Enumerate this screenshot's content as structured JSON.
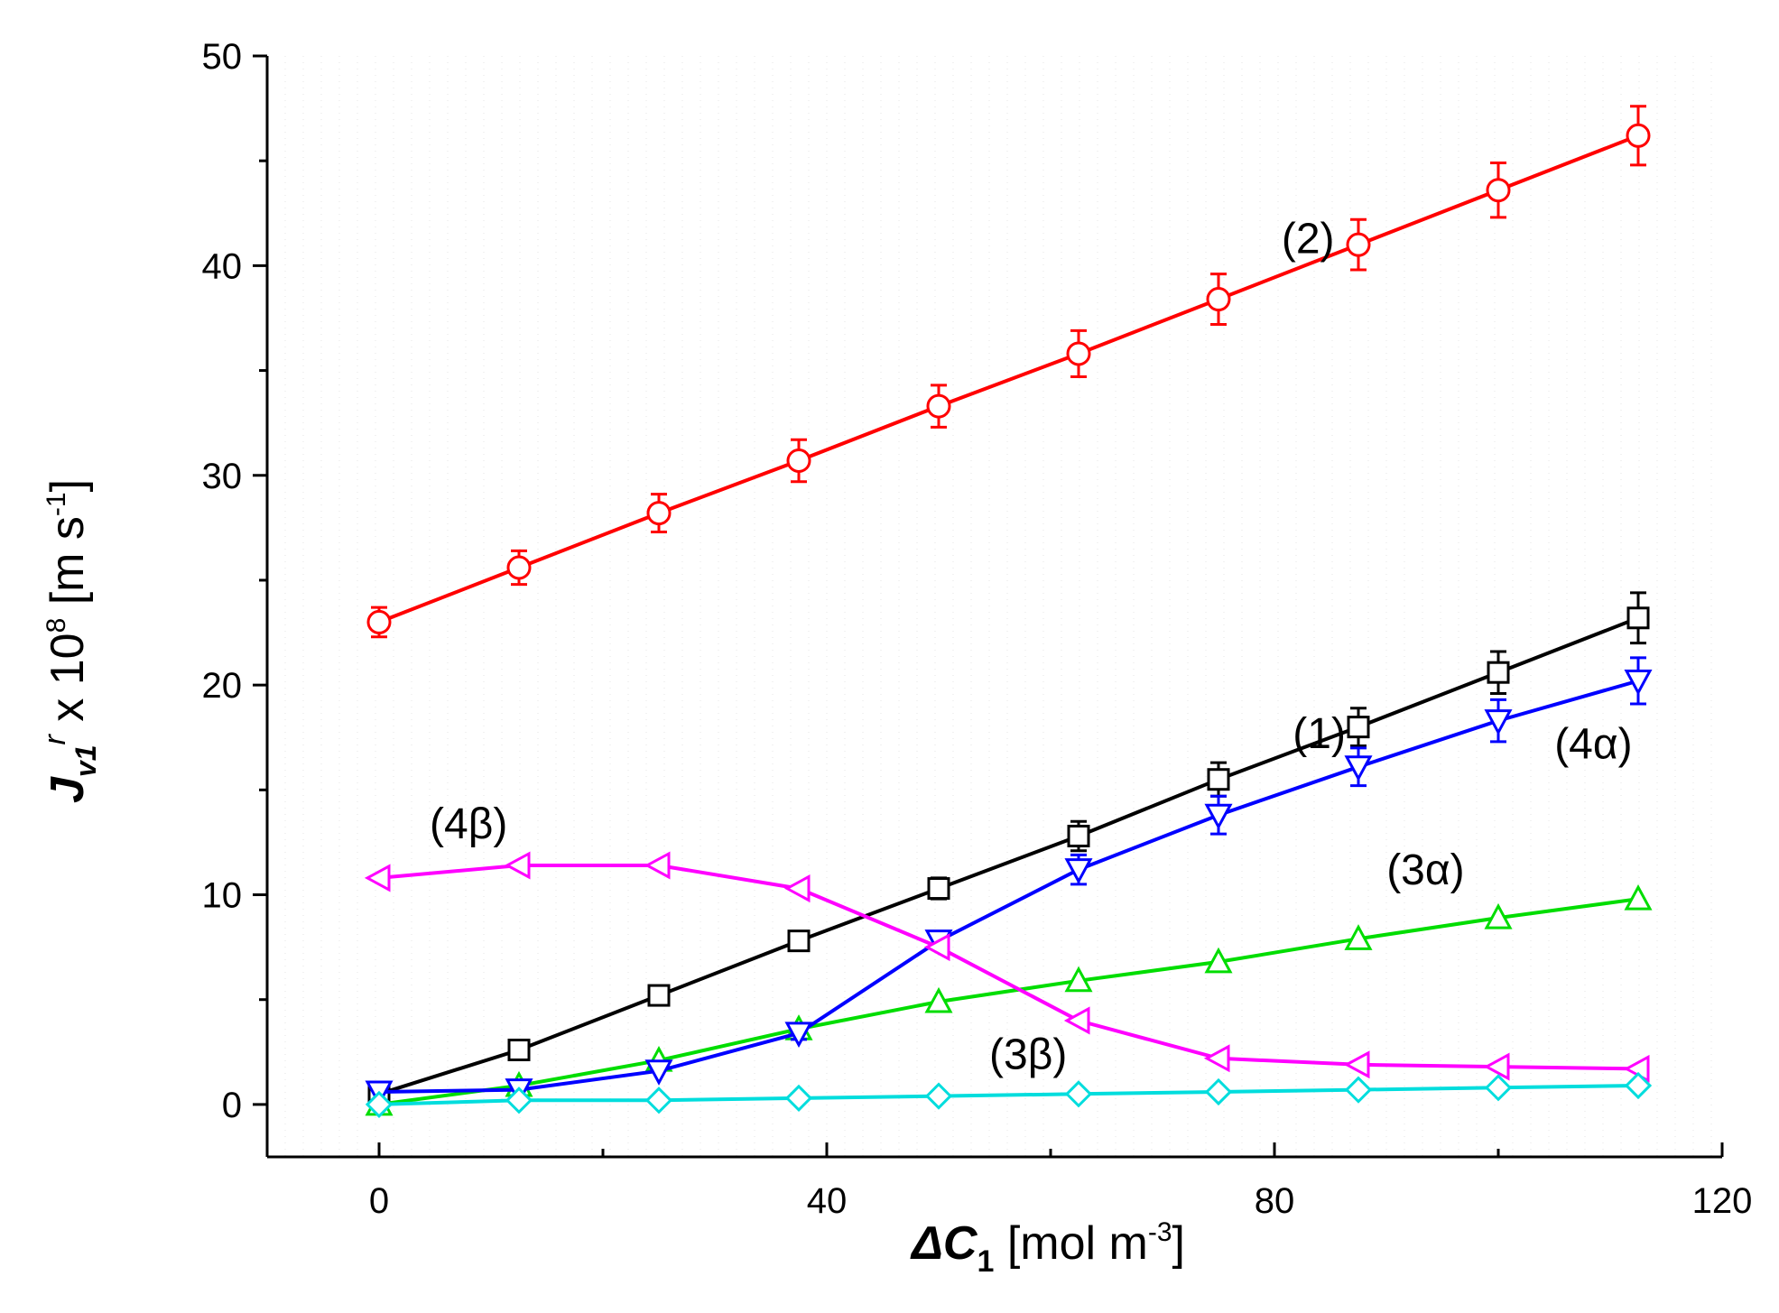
{
  "chart_data": {
    "type": "line",
    "x_axis": {
      "label_symbol": "ΔC",
      "label_subscript": "1",
      "label_unit_open": " [mol m",
      "label_unit_sup": "-3",
      "label_unit_close": "]",
      "range": [
        -10,
        120
      ],
      "ticks": [
        0,
        40,
        80,
        120
      ],
      "tick_labels": [
        "0",
        "40",
        "80",
        "120"
      ]
    },
    "y_axis": {
      "label_symbol": "J",
      "label_subscript": "v1",
      "label_superscript": "r",
      "label_mult": " x 10",
      "label_exp": "8",
      "label_unit_open": " [m s",
      "label_unit_sup": "-1",
      "label_unit_close": "]",
      "range": [
        -2.5,
        50
      ],
      "ticks": [
        0,
        10,
        20,
        30,
        40,
        50
      ],
      "tick_labels": [
        "0",
        "10",
        "20",
        "30",
        "40",
        "50"
      ]
    },
    "x": [
      0,
      12.5,
      25,
      37.5,
      50,
      62.5,
      75,
      87.5,
      100,
      112.5
    ],
    "series": [
      {
        "name": "(1)",
        "color": "#000000",
        "marker": "square",
        "values": [
          0.5,
          2.6,
          5.2,
          7.8,
          10.3,
          12.8,
          15.5,
          18.0,
          20.6,
          23.2
        ],
        "errors": [
          0,
          0.3,
          0.3,
          0.4,
          0.5,
          0.7,
          0.8,
          0.9,
          1.0,
          1.2
        ]
      },
      {
        "name": "(2)",
        "color": "#ff0000",
        "marker": "circle",
        "values": [
          23.0,
          25.6,
          28.2,
          30.7,
          33.3,
          35.8,
          38.4,
          41.0,
          43.6,
          46.2
        ],
        "errors": [
          0.7,
          0.8,
          0.9,
          1.0,
          1.0,
          1.1,
          1.2,
          1.2,
          1.3,
          1.4
        ]
      },
      {
        "name": "(3α)",
        "color": "#00dd00",
        "marker": "triangle-up",
        "values": [
          0.0,
          0.9,
          2.1,
          3.6,
          4.9,
          5.9,
          6.8,
          7.9,
          8.9,
          9.8
        ],
        "errors": [
          0,
          0,
          0,
          0,
          0,
          0,
          0,
          0,
          0,
          0
        ]
      },
      {
        "name": "(4α)",
        "color": "#0000ff",
        "marker": "triangle-down",
        "values": [
          0.6,
          0.7,
          1.6,
          3.4,
          7.8,
          11.2,
          13.8,
          16.1,
          18.3,
          20.2
        ],
        "errors": [
          0,
          0,
          0,
          0.3,
          0.4,
          0.7,
          0.9,
          0.9,
          1.0,
          1.1
        ]
      },
      {
        "name": "(4β)",
        "color": "#ff00ff",
        "marker": "triangle-left",
        "values": [
          10.8,
          11.4,
          11.4,
          10.3,
          7.5,
          4.0,
          2.2,
          1.9,
          1.8,
          1.7
        ],
        "errors": [
          0,
          0,
          0,
          0,
          0,
          0,
          0,
          0,
          0,
          0
        ]
      },
      {
        "name": "(3β)",
        "color": "#00dddd",
        "marker": "diamond",
        "values": [
          0.0,
          0.2,
          0.2,
          0.3,
          0.4,
          0.5,
          0.6,
          0.7,
          0.8,
          0.9
        ],
        "errors": [
          0,
          0,
          0,
          0,
          0,
          0,
          0,
          0,
          0,
          0
        ]
      }
    ],
    "annotations": [
      {
        "text_open": "(",
        "text_main": "2",
        "text_close": ")",
        "x": 83,
        "y": 40.6
      },
      {
        "text_open": "(",
        "text_main": "1",
        "text_close": ")",
        "x": 84,
        "y": 17.0
      },
      {
        "text_open": "(",
        "text_main": "4α",
        "text_close": ")",
        "x": 108.5,
        "y": 16.5
      },
      {
        "text_open": "(",
        "text_main": "4β",
        "text_close": ")",
        "x": 8,
        "y": 12.7
      },
      {
        "text_open": "(",
        "text_main": "3α",
        "text_close": ")",
        "x": 93.5,
        "y": 10.5
      },
      {
        "text_open": "(",
        "text_main": "3β",
        "text_close": ")",
        "x": 58,
        "y": 1.7
      }
    ]
  }
}
